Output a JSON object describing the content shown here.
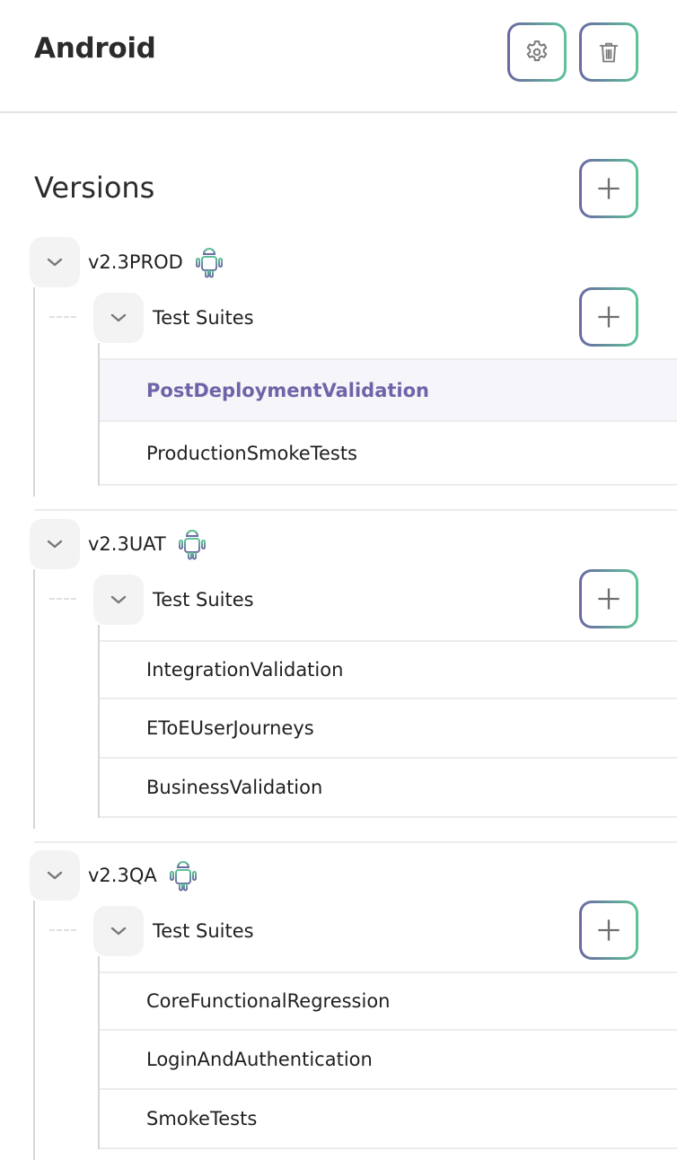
{
  "header": {
    "title": "Android",
    "settings_icon": "gear-icon",
    "delete_icon": "trash-icon"
  },
  "versions_title": "Versions",
  "colors": {
    "gradient_start": "#6b68a3",
    "gradient_end": "#5dc497",
    "selected_text": "#6e64a8",
    "selected_bg": "#f5f5fa"
  },
  "versions": [
    {
      "name": "v2.3PROD",
      "platform_icon": "android-icon",
      "suites_label": "Test Suites",
      "suites": [
        {
          "name": "PostDeploymentValidation",
          "selected": true
        },
        {
          "name": "ProductionSmokeTests",
          "selected": false
        }
      ]
    },
    {
      "name": "v2.3UAT",
      "platform_icon": "android-icon",
      "suites_label": "Test Suites",
      "suites": [
        {
          "name": "IntegrationValidation",
          "selected": false
        },
        {
          "name": "EToEUserJourneys",
          "selected": false
        },
        {
          "name": "BusinessValidation",
          "selected": false
        }
      ]
    },
    {
      "name": "v2.3QA",
      "platform_icon": "android-icon",
      "suites_label": "Test Suites",
      "suites": [
        {
          "name": "CoreFunctionalRegression",
          "selected": false
        },
        {
          "name": "LoginAndAuthentication",
          "selected": false
        },
        {
          "name": "SmokeTests",
          "selected": false
        }
      ]
    }
  ]
}
